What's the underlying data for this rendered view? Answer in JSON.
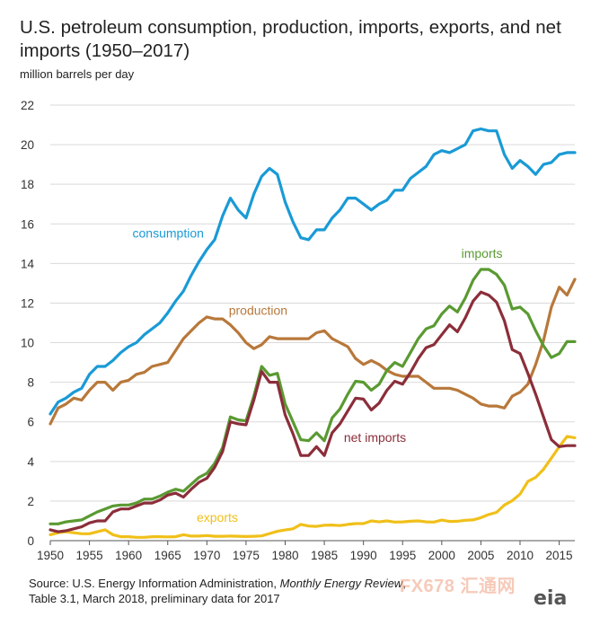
{
  "header": {
    "title": "U.S. petroleum consumption, production, imports, exports, and net imports (1950–2017)",
    "units": "million barrels per day"
  },
  "footer": {
    "source_prefix": "Source: U.S. Energy Information Administration, ",
    "source_italic": "Monthly Energy Review",
    "source_suffix": ",",
    "line2": "Table 3.1, March 2018, preliminary data for 2017"
  },
  "watermark": "FX678 汇通网",
  "logo": "eia",
  "chart_data": {
    "type": "line",
    "title": "U.S. petroleum consumption, production, imports, exports, and net imports (1950–2017)",
    "ylabel": "million barrels per day",
    "xlim": [
      1950,
      2017
    ],
    "ylim": [
      0,
      22
    ],
    "yticks": [
      0,
      2,
      4,
      6,
      8,
      10,
      12,
      14,
      16,
      18,
      20,
      22
    ],
    "xticks": [
      1950,
      1955,
      1960,
      1965,
      1970,
      1975,
      1980,
      1985,
      1990,
      1995,
      2000,
      2005,
      2010,
      2015
    ],
    "grid": "horizontal",
    "x": [
      1950,
      1951,
      1952,
      1953,
      1954,
      1955,
      1956,
      1957,
      1958,
      1959,
      1960,
      1961,
      1962,
      1963,
      1964,
      1965,
      1966,
      1967,
      1968,
      1969,
      1970,
      1971,
      1972,
      1973,
      1974,
      1975,
      1976,
      1977,
      1978,
      1979,
      1980,
      1981,
      1982,
      1983,
      1984,
      1985,
      1986,
      1987,
      1988,
      1989,
      1990,
      1991,
      1992,
      1993,
      1994,
      1995,
      1996,
      1997,
      1998,
      1999,
      2000,
      2001,
      2002,
      2003,
      2004,
      2005,
      2006,
      2007,
      2008,
      2009,
      2010,
      2011,
      2012,
      2013,
      2014,
      2015,
      2016,
      2017
    ],
    "series": [
      {
        "name": "consumption",
        "color": "#1a9ad6",
        "values": [
          6.4,
          7.0,
          7.2,
          7.5,
          7.7,
          8.4,
          8.8,
          8.8,
          9.1,
          9.5,
          9.8,
          10.0,
          10.4,
          10.7,
          11.0,
          11.5,
          12.1,
          12.6,
          13.4,
          14.1,
          14.7,
          15.2,
          16.4,
          17.3,
          16.7,
          16.3,
          17.5,
          18.4,
          18.8,
          18.5,
          17.1,
          16.1,
          15.3,
          15.2,
          15.7,
          15.7,
          16.3,
          16.7,
          17.3,
          17.3,
          17.0,
          16.7,
          17.0,
          17.2,
          17.7,
          17.7,
          18.3,
          18.6,
          18.9,
          19.5,
          19.7,
          19.6,
          19.8,
          20.0,
          20.7,
          20.8,
          20.7,
          20.7,
          19.5,
          18.8,
          19.2,
          18.9,
          18.5,
          19.0,
          19.1,
          19.5,
          19.6,
          19.6
        ]
      },
      {
        "name": "production",
        "color": "#b8783a",
        "values": [
          5.9,
          6.7,
          6.9,
          7.2,
          7.1,
          7.6,
          8.0,
          8.0,
          7.6,
          8.0,
          8.1,
          8.4,
          8.5,
          8.8,
          8.9,
          9.0,
          9.6,
          10.2,
          10.6,
          11.0,
          11.3,
          11.2,
          11.2,
          10.9,
          10.5,
          10.0,
          9.7,
          9.9,
          10.3,
          10.2,
          10.2,
          10.2,
          10.2,
          10.2,
          10.5,
          10.6,
          10.2,
          10.0,
          9.8,
          9.2,
          8.9,
          9.1,
          8.9,
          8.6,
          8.4,
          8.3,
          8.3,
          8.3,
          8.0,
          7.7,
          7.7,
          7.7,
          7.6,
          7.4,
          7.2,
          6.9,
          6.8,
          6.8,
          6.7,
          7.3,
          7.5,
          7.9,
          8.9,
          10.1,
          11.8,
          12.8,
          12.4,
          13.2
        ]
      },
      {
        "name": "imports",
        "color": "#5a9a32",
        "values": [
          0.85,
          0.85,
          0.95,
          1.0,
          1.05,
          1.25,
          1.45,
          1.6,
          1.75,
          1.8,
          1.8,
          1.9,
          2.1,
          2.1,
          2.25,
          2.45,
          2.6,
          2.5,
          2.85,
          3.2,
          3.4,
          3.9,
          4.7,
          6.25,
          6.1,
          6.05,
          7.3,
          8.8,
          8.35,
          8.45,
          6.9,
          6.0,
          5.1,
          5.05,
          5.45,
          5.05,
          6.2,
          6.65,
          7.4,
          8.05,
          8.0,
          7.6,
          7.9,
          8.6,
          9.0,
          8.8,
          9.5,
          10.2,
          10.7,
          10.85,
          11.45,
          11.85,
          11.55,
          12.25,
          13.15,
          13.7,
          13.7,
          13.45,
          12.9,
          11.7,
          11.8,
          11.45,
          10.6,
          9.85,
          9.25,
          9.45,
          10.05,
          10.05
        ]
      },
      {
        "name": "exports",
        "color": "#f0c01a",
        "values": [
          0.3,
          0.4,
          0.45,
          0.4,
          0.35,
          0.35,
          0.45,
          0.55,
          0.3,
          0.2,
          0.2,
          0.17,
          0.17,
          0.2,
          0.2,
          0.19,
          0.2,
          0.3,
          0.23,
          0.23,
          0.26,
          0.22,
          0.22,
          0.23,
          0.22,
          0.21,
          0.22,
          0.24,
          0.36,
          0.47,
          0.54,
          0.6,
          0.82,
          0.74,
          0.72,
          0.78,
          0.79,
          0.76,
          0.82,
          0.86,
          0.86,
          1.0,
          0.95,
          1.0,
          0.94,
          0.95,
          0.98,
          1.0,
          0.95,
          0.94,
          1.04,
          0.97,
          0.98,
          1.03,
          1.05,
          1.16,
          1.32,
          1.43,
          1.8,
          2.02,
          2.35,
          2.99,
          3.2,
          3.6,
          4.17,
          4.74,
          5.26,
          5.2
        ]
      },
      {
        "name": "net imports",
        "color": "#8b2e3a",
        "values": [
          0.55,
          0.45,
          0.5,
          0.6,
          0.7,
          0.9,
          1.0,
          1.0,
          1.45,
          1.6,
          1.6,
          1.75,
          1.9,
          1.9,
          2.05,
          2.3,
          2.4,
          2.2,
          2.6,
          2.95,
          3.15,
          3.7,
          4.5,
          6.0,
          5.9,
          5.85,
          7.1,
          8.55,
          8.0,
          8.0,
          6.35,
          5.4,
          4.3,
          4.3,
          4.75,
          4.3,
          5.45,
          5.9,
          6.55,
          7.2,
          7.15,
          6.6,
          6.95,
          7.6,
          8.05,
          7.9,
          8.5,
          9.2,
          9.75,
          9.9,
          10.4,
          10.9,
          10.55,
          11.25,
          12.1,
          12.55,
          12.4,
          12.05,
          11.1,
          9.65,
          9.45,
          8.45,
          7.4,
          6.25,
          5.1,
          4.75,
          4.8,
          4.8
        ]
      }
    ],
    "annotations": [
      {
        "text": "consumption",
        "series": "consumption",
        "x": 1960.5,
        "y": 15.3
      },
      {
        "text": "production",
        "series": "production",
        "x": 1972.8,
        "y": 11.4
      },
      {
        "text": "imports",
        "series": "imports",
        "x": 2002.5,
        "y": 14.3
      },
      {
        "text": "net imports",
        "series": "net imports",
        "x": 1987.5,
        "y": 5.0
      },
      {
        "text": "exports",
        "series": "exports",
        "x": 1968.7,
        "y": 0.95
      }
    ]
  }
}
